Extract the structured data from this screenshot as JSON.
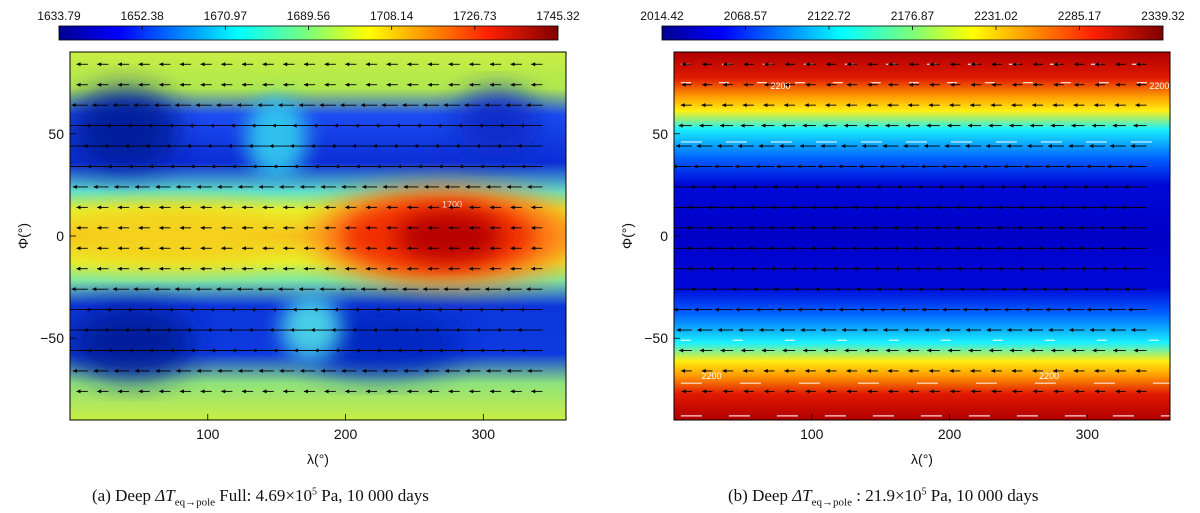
{
  "chart_data": [
    {
      "type": "heatmap",
      "panel": "a",
      "xlabel": "λ(°)",
      "ylabel": "Φ(°)",
      "xlim": [
        0,
        360
      ],
      "ylim": [
        -90,
        90
      ],
      "xticks": [
        100,
        200,
        300
      ],
      "yticks": [
        50,
        0,
        -50
      ],
      "colorbar": {
        "ticks": [
          "1633.79",
          "1652.38",
          "1670.97",
          "1689.56",
          "1708.14",
          "1726.73",
          "1745.32"
        ],
        "min": 1633.79,
        "max": 1745.32
      },
      "field": "equatorial warm band peaking near λ≈275°, cold regions at mid-latitudes (~±45°)",
      "contour_label": "1700",
      "wind_vectors": "westward arrows, strongest at mid-latitudes",
      "caption": {
        "label": "(a) Deep",
        "delta": "ΔT",
        "subscript": "eq→pole",
        "rest": "Full: 4.69×10",
        "exp": "5",
        "tail": " Pa, 10 000 days"
      }
    },
    {
      "type": "heatmap",
      "panel": "b",
      "xlabel": "λ(°)",
      "ylabel": "Φ(°)",
      "xlim": [
        0,
        360
      ],
      "ylim": [
        -90,
        90
      ],
      "xticks": [
        100,
        200,
        300
      ],
      "yticks": [
        50,
        0,
        -50
      ],
      "colorbar": {
        "ticks": [
          "2014.42",
          "2068.57",
          "2122.72",
          "2176.87",
          "2231.02",
          "2285.17",
          "2339.32"
        ],
        "min": 2014.42,
        "max": 2339.32
      },
      "field": "zonally uniform, cold equator, hot poles",
      "contour_labels": [
        "2200",
        "2200",
        "2200",
        "2200"
      ],
      "wind_vectors": "westward arrows, strongest near the equator",
      "caption": {
        "label": "(b) Deep",
        "delta": "ΔT",
        "subscript": "eq→pole",
        "rest": ": 21.9×10",
        "exp": "5",
        "tail": " Pa, 10 000 days"
      }
    }
  ]
}
